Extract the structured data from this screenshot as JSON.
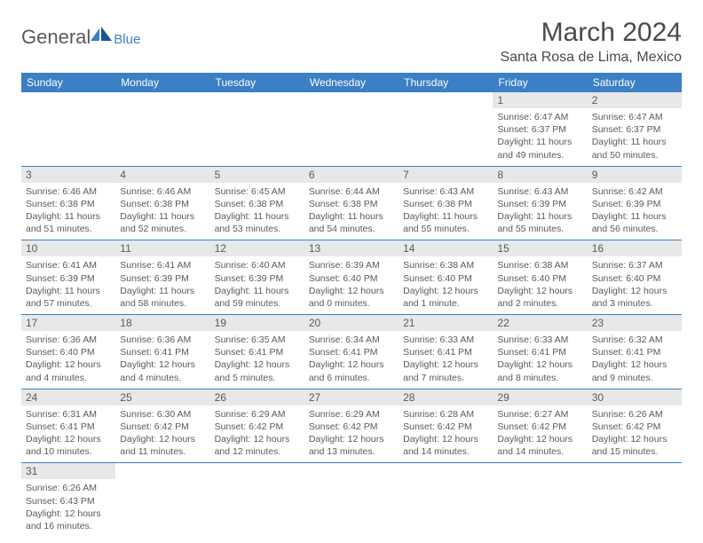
{
  "logo": {
    "text1": "General",
    "text2": "Blue"
  },
  "title": "March 2024",
  "location": "Santa Rosa de Lima, Mexico",
  "colors": {
    "header_bg": "#3b7fc4",
    "daynum_bg": "#e8e8e8",
    "text": "#5a5a5a"
  },
  "weekdays": [
    "Sunday",
    "Monday",
    "Tuesday",
    "Wednesday",
    "Thursday",
    "Friday",
    "Saturday"
  ],
  "weeks": [
    [
      null,
      null,
      null,
      null,
      null,
      {
        "n": "1",
        "sr": "Sunrise: 6:47 AM",
        "ss": "Sunset: 6:37 PM",
        "dl": "Daylight: 11 hours and 49 minutes."
      },
      {
        "n": "2",
        "sr": "Sunrise: 6:47 AM",
        "ss": "Sunset: 6:37 PM",
        "dl": "Daylight: 11 hours and 50 minutes."
      }
    ],
    [
      {
        "n": "3",
        "sr": "Sunrise: 6:46 AM",
        "ss": "Sunset: 6:38 PM",
        "dl": "Daylight: 11 hours and 51 minutes."
      },
      {
        "n": "4",
        "sr": "Sunrise: 6:46 AM",
        "ss": "Sunset: 6:38 PM",
        "dl": "Daylight: 11 hours and 52 minutes."
      },
      {
        "n": "5",
        "sr": "Sunrise: 6:45 AM",
        "ss": "Sunset: 6:38 PM",
        "dl": "Daylight: 11 hours and 53 minutes."
      },
      {
        "n": "6",
        "sr": "Sunrise: 6:44 AM",
        "ss": "Sunset: 6:38 PM",
        "dl": "Daylight: 11 hours and 54 minutes."
      },
      {
        "n": "7",
        "sr": "Sunrise: 6:43 AM",
        "ss": "Sunset: 6:38 PM",
        "dl": "Daylight: 11 hours and 55 minutes."
      },
      {
        "n": "8",
        "sr": "Sunrise: 6:43 AM",
        "ss": "Sunset: 6:39 PM",
        "dl": "Daylight: 11 hours and 55 minutes."
      },
      {
        "n": "9",
        "sr": "Sunrise: 6:42 AM",
        "ss": "Sunset: 6:39 PM",
        "dl": "Daylight: 11 hours and 56 minutes."
      }
    ],
    [
      {
        "n": "10",
        "sr": "Sunrise: 6:41 AM",
        "ss": "Sunset: 6:39 PM",
        "dl": "Daylight: 11 hours and 57 minutes."
      },
      {
        "n": "11",
        "sr": "Sunrise: 6:41 AM",
        "ss": "Sunset: 6:39 PM",
        "dl": "Daylight: 11 hours and 58 minutes."
      },
      {
        "n": "12",
        "sr": "Sunrise: 6:40 AM",
        "ss": "Sunset: 6:39 PM",
        "dl": "Daylight: 11 hours and 59 minutes."
      },
      {
        "n": "13",
        "sr": "Sunrise: 6:39 AM",
        "ss": "Sunset: 6:40 PM",
        "dl": "Daylight: 12 hours and 0 minutes."
      },
      {
        "n": "14",
        "sr": "Sunrise: 6:38 AM",
        "ss": "Sunset: 6:40 PM",
        "dl": "Daylight: 12 hours and 1 minute."
      },
      {
        "n": "15",
        "sr": "Sunrise: 6:38 AM",
        "ss": "Sunset: 6:40 PM",
        "dl": "Daylight: 12 hours and 2 minutes."
      },
      {
        "n": "16",
        "sr": "Sunrise: 6:37 AM",
        "ss": "Sunset: 6:40 PM",
        "dl": "Daylight: 12 hours and 3 minutes."
      }
    ],
    [
      {
        "n": "17",
        "sr": "Sunrise: 6:36 AM",
        "ss": "Sunset: 6:40 PM",
        "dl": "Daylight: 12 hours and 4 minutes."
      },
      {
        "n": "18",
        "sr": "Sunrise: 6:36 AM",
        "ss": "Sunset: 6:41 PM",
        "dl": "Daylight: 12 hours and 4 minutes."
      },
      {
        "n": "19",
        "sr": "Sunrise: 6:35 AM",
        "ss": "Sunset: 6:41 PM",
        "dl": "Daylight: 12 hours and 5 minutes."
      },
      {
        "n": "20",
        "sr": "Sunrise: 6:34 AM",
        "ss": "Sunset: 6:41 PM",
        "dl": "Daylight: 12 hours and 6 minutes."
      },
      {
        "n": "21",
        "sr": "Sunrise: 6:33 AM",
        "ss": "Sunset: 6:41 PM",
        "dl": "Daylight: 12 hours and 7 minutes."
      },
      {
        "n": "22",
        "sr": "Sunrise: 6:33 AM",
        "ss": "Sunset: 6:41 PM",
        "dl": "Daylight: 12 hours and 8 minutes."
      },
      {
        "n": "23",
        "sr": "Sunrise: 6:32 AM",
        "ss": "Sunset: 6:41 PM",
        "dl": "Daylight: 12 hours and 9 minutes."
      }
    ],
    [
      {
        "n": "24",
        "sr": "Sunrise: 6:31 AM",
        "ss": "Sunset: 6:41 PM",
        "dl": "Daylight: 12 hours and 10 minutes."
      },
      {
        "n": "25",
        "sr": "Sunrise: 6:30 AM",
        "ss": "Sunset: 6:42 PM",
        "dl": "Daylight: 12 hours and 11 minutes."
      },
      {
        "n": "26",
        "sr": "Sunrise: 6:29 AM",
        "ss": "Sunset: 6:42 PM",
        "dl": "Daylight: 12 hours and 12 minutes."
      },
      {
        "n": "27",
        "sr": "Sunrise: 6:29 AM",
        "ss": "Sunset: 6:42 PM",
        "dl": "Daylight: 12 hours and 13 minutes."
      },
      {
        "n": "28",
        "sr": "Sunrise: 6:28 AM",
        "ss": "Sunset: 6:42 PM",
        "dl": "Daylight: 12 hours and 14 minutes."
      },
      {
        "n": "29",
        "sr": "Sunrise: 6:27 AM",
        "ss": "Sunset: 6:42 PM",
        "dl": "Daylight: 12 hours and 14 minutes."
      },
      {
        "n": "30",
        "sr": "Sunrise: 6:26 AM",
        "ss": "Sunset: 6:42 PM",
        "dl": "Daylight: 12 hours and 15 minutes."
      }
    ],
    [
      {
        "n": "31",
        "sr": "Sunrise: 6:26 AM",
        "ss": "Sunset: 6:43 PM",
        "dl": "Daylight: 12 hours and 16 minutes."
      },
      null,
      null,
      null,
      null,
      null,
      null
    ]
  ]
}
